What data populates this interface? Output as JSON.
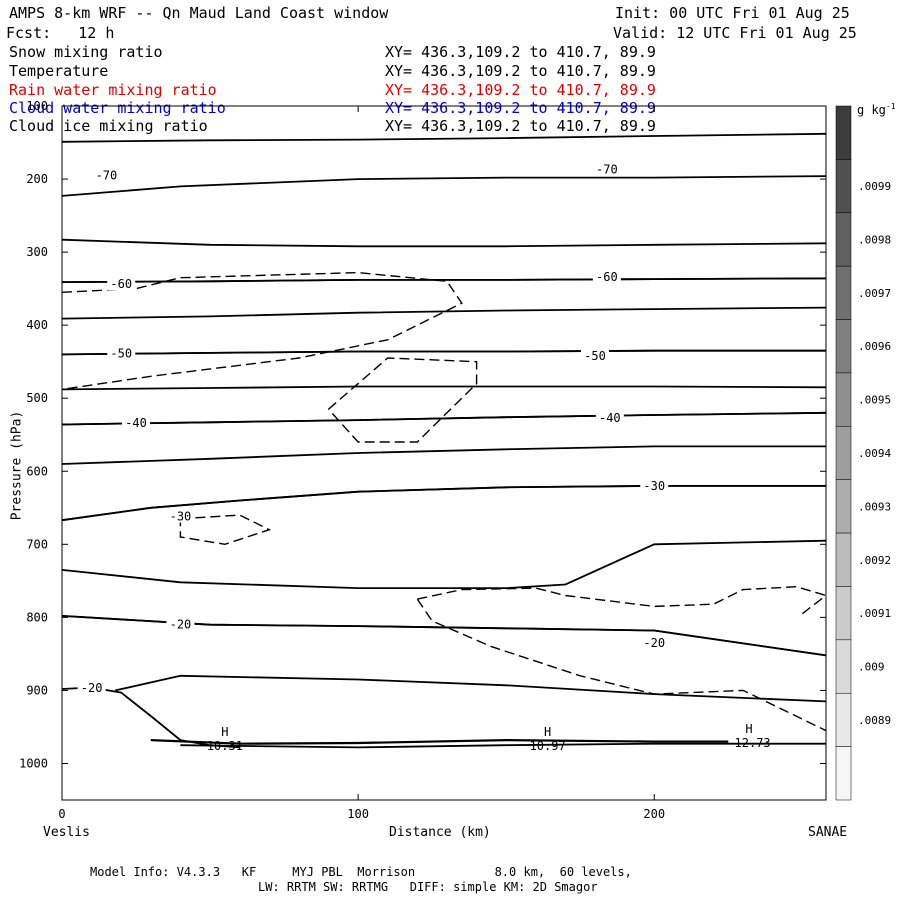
{
  "header": {
    "title": "AMPS 8-km WRF -- Qn Maud Land Coast window",
    "init": "Init: 00 UTC Fri 01 Aug 25",
    "fcst": "Fcst:   12 h",
    "valid": "Valid: 12 UTC Fri 01 Aug 25"
  },
  "fields": [
    {
      "name": "Snow mixing ratio",
      "xy": "XY= 436.3,109.2 to 410.7, 89.9",
      "color": "#000000"
    },
    {
      "name": "Temperature",
      "xy": "XY= 436.3,109.2 to 410.7, 89.9",
      "color": "#000000"
    },
    {
      "name": "Rain water mixing ratio",
      "xy": "XY= 436.3,109.2 to 410.7, 89.9",
      "color": "#e00000"
    },
    {
      "name": "Cloud water mixing ratio",
      "xy": "XY= 436.3,109.2 to 410.7, 89.9",
      "color": "#0000dd"
    },
    {
      "name": "Cloud ice mixing ratio",
      "xy": "XY= 436.3,109.2 to 410.7, 89.9",
      "color": "#000000"
    }
  ],
  "footer": {
    "model_info": "Model Info: V4.3.3   KF     MYJ PBL  Morrison           8.0 km,  60 levels,",
    "model_info2": "LW: RRTM SW: RRTMG   DIFF: simple KM: 2D Smagor"
  },
  "chart_data": {
    "type": "line",
    "ylabel": "Pressure (hPa)",
    "xlabel": "Distance (km)",
    "x_start_label": "Veslis",
    "x_end_label": "SANAE",
    "xlim": [
      0,
      258
    ],
    "ylim": [
      1050,
      100
    ],
    "x_ticks": [
      0,
      100,
      200
    ],
    "y_ticks": [
      100,
      200,
      300,
      400,
      500,
      600,
      700,
      800,
      900,
      1000
    ],
    "colorbar": {
      "unit": "g kg",
      "unit_sup": "-1",
      "labels": [
        ".0099",
        ".0098",
        ".0097",
        ".0096",
        ".0095",
        ".0094",
        ".0093",
        ".0092",
        ".0091",
        ".009",
        ".0089"
      ],
      "colors": [
        "#3c3c3c",
        "#505050",
        "#606060",
        "#707070",
        "#808080",
        "#8f8f8f",
        "#9e9e9e",
        "#adadad",
        "#bcbcbc",
        "#cbcbcb",
        "#dadada",
        "#e8e8e8",
        "#f6f6f6"
      ]
    },
    "temperature_contours": [
      {
        "label": "-70",
        "points": [
          [
            0,
            149
          ],
          [
            50,
            147
          ],
          [
            100,
            146
          ],
          [
            150,
            144
          ],
          [
            200,
            141
          ],
          [
            258,
            138
          ]
        ],
        "label_at": [
          15,
          195
        ]
      },
      {
        "label": "-70",
        "points": [
          [
            0,
            223
          ],
          [
            40,
            210
          ],
          [
            100,
            200
          ],
          [
            150,
            198
          ],
          [
            200,
            198
          ],
          [
            258,
            196
          ]
        ],
        "label_at": [
          184,
          187
        ]
      },
      {
        "label": "",
        "points": [
          [
            0,
            283
          ],
          [
            50,
            290
          ],
          [
            100,
            292
          ],
          [
            150,
            292
          ],
          [
            200,
            290
          ],
          [
            258,
            288
          ]
        ],
        "label_at": null
      },
      {
        "label": "-60",
        "points": [
          [
            0,
            341
          ],
          [
            50,
            340
          ],
          [
            100,
            338
          ],
          [
            150,
            338
          ],
          [
            200,
            337
          ],
          [
            258,
            336
          ]
        ],
        "label_at": [
          20,
          344
        ]
      },
      {
        "label": "-60",
        "points": [
          [
            0,
            341
          ],
          [
            50,
            340
          ],
          [
            100,
            338
          ],
          [
            150,
            338
          ],
          [
            200,
            337
          ],
          [
            258,
            336
          ]
        ],
        "label_at": [
          184,
          334
        ]
      },
      {
        "label": "",
        "points": [
          [
            0,
            391
          ],
          [
            50,
            388
          ],
          [
            100,
            383
          ],
          [
            150,
            380
          ],
          [
            200,
            378
          ],
          [
            258,
            376
          ]
        ],
        "label_at": null
      },
      {
        "label": "-50",
        "points": [
          [
            0,
            440
          ],
          [
            50,
            438
          ],
          [
            100,
            436
          ],
          [
            150,
            436
          ],
          [
            200,
            435
          ],
          [
            258,
            435
          ]
        ],
        "label_at": [
          20,
          439
        ]
      },
      {
        "label": "-50",
        "points": [
          [
            0,
            440
          ],
          [
            50,
            438
          ],
          [
            100,
            436
          ],
          [
            150,
            436
          ],
          [
            200,
            435
          ],
          [
            258,
            435
          ]
        ],
        "label_at": [
          180,
          442
        ]
      },
      {
        "label": "",
        "points": [
          [
            0,
            488
          ],
          [
            50,
            486
          ],
          [
            100,
            484
          ],
          [
            150,
            484
          ],
          [
            200,
            484
          ],
          [
            258,
            485
          ]
        ],
        "label_at": null
      },
      {
        "label": "-40",
        "points": [
          [
            0,
            536
          ],
          [
            50,
            533
          ],
          [
            100,
            530
          ],
          [
            150,
            526
          ],
          [
            200,
            523
          ],
          [
            258,
            520
          ]
        ],
        "label_at": [
          25,
          534
        ]
      },
      {
        "label": "-40",
        "points": [
          [
            0,
            536
          ],
          [
            50,
            533
          ],
          [
            100,
            530
          ],
          [
            150,
            526
          ],
          [
            200,
            523
          ],
          [
            258,
            520
          ]
        ],
        "label_at": [
          185,
          527
        ]
      },
      {
        "label": "",
        "points": [
          [
            0,
            590
          ],
          [
            50,
            583
          ],
          [
            100,
            575
          ],
          [
            150,
            570
          ],
          [
            200,
            566
          ],
          [
            258,
            566
          ]
        ],
        "label_at": null
      },
      {
        "label": "-30",
        "points": [
          [
            0,
            667
          ],
          [
            30,
            650
          ],
          [
            60,
            640
          ],
          [
            100,
            628
          ],
          [
            150,
            622
          ],
          [
            200,
            620
          ],
          [
            258,
            620
          ]
        ],
        "label_at": [
          40,
          662
        ]
      },
      {
        "label": "-30",
        "points": [
          [
            0,
            667
          ],
          [
            30,
            650
          ],
          [
            60,
            640
          ],
          [
            100,
            628
          ],
          [
            150,
            622
          ],
          [
            200,
            620
          ],
          [
            258,
            620
          ]
        ],
        "label_at": [
          200,
          620
        ]
      },
      {
        "label": "",
        "points": [
          [
            0,
            735
          ],
          [
            40,
            752
          ],
          [
            100,
            760
          ],
          [
            150,
            760
          ],
          [
            170,
            755
          ],
          [
            200,
            700
          ],
          [
            258,
            695
          ]
        ],
        "label_at": null
      },
      {
        "label": "-20",
        "points": [
          [
            0,
            798
          ],
          [
            50,
            810
          ],
          [
            100,
            812
          ],
          [
            150,
            815
          ],
          [
            200,
            818
          ],
          [
            258,
            852
          ]
        ],
        "label_at": [
          40,
          810
        ]
      },
      {
        "label": "-20",
        "points": [
          [
            0,
            798
          ],
          [
            50,
            810
          ],
          [
            100,
            812
          ],
          [
            150,
            815
          ],
          [
            200,
            818
          ],
          [
            258,
            852
          ]
        ],
        "label_at": [
          200,
          835
        ]
      }
    ],
    "surface_contours": [
      {
        "label": "-20",
        "points": [
          [
            0,
            898
          ],
          [
            10,
            896
          ],
          [
            20,
            903
          ],
          [
            30,
            935
          ],
          [
            40,
            968
          ],
          [
            50,
            975
          ],
          [
            60,
            978
          ]
        ],
        "label_at": [
          10,
          897
        ]
      },
      {
        "label": "",
        "points": [
          [
            18,
            900
          ],
          [
            40,
            880
          ],
          [
            100,
            885
          ],
          [
            150,
            893
          ],
          [
            200,
            905
          ],
          [
            258,
            915
          ]
        ],
        "label_at": null
      }
    ],
    "highs": [
      {
        "label": "H",
        "value": "10.31",
        "x": 55,
        "y": 972
      },
      {
        "label": "H",
        "value": "10.97",
        "x": 164,
        "y": 972
      },
      {
        "label": "H",
        "value": "-12.73",
        "x": 232,
        "y": 968
      }
    ],
    "dashed_contours": [
      [
        [
          0,
          355
        ],
        [
          25,
          350
        ],
        [
          40,
          335
        ],
        [
          100,
          328
        ],
        [
          130,
          340
        ],
        [
          135,
          370
        ],
        [
          110,
          420
        ],
        [
          80,
          445
        ],
        [
          30,
          470
        ],
        [
          0,
          488
        ]
      ],
      [
        [
          90,
          515
        ],
        [
          110,
          445
        ],
        [
          140,
          450
        ],
        [
          140,
          480
        ],
        [
          120,
          560
        ],
        [
          100,
          560
        ],
        [
          90,
          515
        ]
      ],
      [
        [
          40,
          665
        ],
        [
          60,
          660
        ],
        [
          70,
          680
        ],
        [
          55,
          700
        ],
        [
          40,
          690
        ],
        [
          40,
          665
        ]
      ],
      [
        [
          120,
          775
        ],
        [
          135,
          762
        ],
        [
          160,
          760
        ],
        [
          170,
          770
        ],
        [
          200,
          785
        ],
        [
          220,
          782
        ],
        [
          230,
          762
        ],
        [
          248,
          758
        ],
        [
          258,
          770
        ]
      ],
      [
        [
          120,
          775
        ],
        [
          125,
          805
        ],
        [
          145,
          840
        ],
        [
          175,
          880
        ],
        [
          200,
          905
        ],
        [
          230,
          900
        ],
        [
          258,
          955
        ]
      ],
      [
        [
          250,
          795
        ],
        [
          258,
          770
        ]
      ]
    ]
  }
}
